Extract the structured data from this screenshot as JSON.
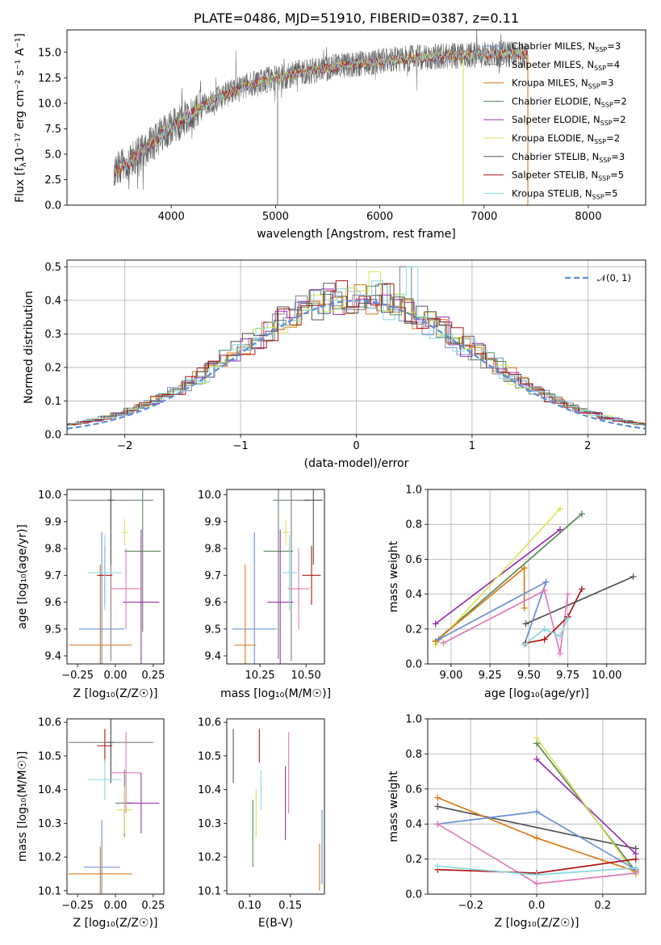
{
  "figure_title": "PLATE=0486, MJD=51910, FIBERID=0387, z=0.11",
  "colors": {
    "chabrier_miles": "#6b8fd6",
    "salpeter_miles": "#7f7f7f",
    "kroupa_miles": "#d97a1a",
    "chabrier_elodie": "#5a8a5a",
    "salpeter_elodie": "#9b30b0",
    "kroupa_elodie": "#d8e45a",
    "chabrier_stelib": "#555555",
    "salpeter_stelib": "#b01818",
    "kroupa_stelib": "#8ad8e0",
    "gaussian": "#5b8ddb",
    "pink": "#e07ab8",
    "grid": "#b0b0b0"
  },
  "chart_data": [
    {
      "id": "spectrum",
      "type": "line",
      "title": "PLATE=0486, MJD=51910, FIBERID=0387, z=0.11",
      "xlabel": "wavelength [Angstrom, rest frame]",
      "ylabel_main": "Flux [f",
      "ylabel_tail": "10⁻¹⁷ erg cm⁻² s⁻¹ A⁻¹]",
      "xlim": [
        3000,
        8550
      ],
      "ylim": [
        0,
        17.2
      ],
      "xticks": [
        "4000",
        "5000",
        "6000",
        "7000",
        "8000"
      ],
      "yticks": [
        "0.0",
        "2.5",
        "5.0",
        "7.5",
        "10.0",
        "12.5",
        "15.0"
      ],
      "grid": false,
      "legend_position": "right",
      "continuum": [
        [
          3450,
          3.3
        ],
        [
          3600,
          4.2
        ],
        [
          3750,
          5.5
        ],
        [
          3900,
          6.8
        ],
        [
          4000,
          7.6
        ],
        [
          4200,
          9.0
        ],
        [
          4400,
          10.3
        ],
        [
          4600,
          11.2
        ],
        [
          4800,
          12.0
        ],
        [
          5000,
          12.5
        ],
        [
          5200,
          12.9
        ],
        [
          5400,
          13.3
        ],
        [
          5600,
          13.6
        ],
        [
          5800,
          13.9
        ],
        [
          6000,
          14.1
        ],
        [
          6200,
          14.3
        ],
        [
          6400,
          14.5
        ],
        [
          6600,
          14.6
        ],
        [
          6800,
          14.7
        ],
        [
          7000,
          14.8
        ],
        [
          7200,
          14.8
        ],
        [
          7400,
          14.8
        ]
      ],
      "features": [
        [
          5020,
          0.0
        ],
        [
          6800,
          0.0
        ],
        [
          7420,
          0.0
        ]
      ],
      "series": [
        {
          "name_main": "Chabrier MILES, N",
          "name_tail": "=3",
          "color": "#6b8fd6"
        },
        {
          "name_main": "Salpeter MILES, N",
          "name_tail": "=4",
          "color": "#7f7f7f"
        },
        {
          "name_main": "Kroupa MILES, N",
          "name_tail": "=3",
          "color": "#d97a1a"
        },
        {
          "name_main": "Chabrier ELODIE, N",
          "name_tail": "=2",
          "color": "#5a8a5a"
        },
        {
          "name_main": "Salpeter ELODIE, N",
          "name_tail": "=2",
          "color": "#9b30b0"
        },
        {
          "name_main": "Kroupa ELODIE, N",
          "name_tail": "=2",
          "color": "#d8e45a"
        },
        {
          "name_main": "Chabrier STELIB, N",
          "name_tail": "=3",
          "color": "#555555"
        },
        {
          "name_main": "Salpeter STELIB, N",
          "name_tail": "=5",
          "color": "#b01818"
        },
        {
          "name_main": "Kroupa STELIB, N",
          "name_tail": "=5",
          "color": "#8ad8e0"
        }
      ]
    },
    {
      "id": "residuals",
      "type": "bar",
      "xlabel": "(data-model)/error",
      "ylabel": "Normed distribution",
      "xlim": [
        -2.5,
        2.5
      ],
      "ylim": [
        0,
        0.52
      ],
      "xticks": [
        "−2",
        "−1",
        "0",
        "1",
        "2"
      ],
      "yticks": [
        "0.0",
        "0.1",
        "0.2",
        "0.3",
        "0.4",
        "0.5"
      ],
      "grid": true,
      "legend": "𝒩(0, 1)",
      "legend_position": "top-right",
      "bin_width": 0.1
    },
    {
      "id": "age_vs_Z",
      "type": "scatter",
      "xlabel": "Z [log₁₀(Z/Z☉)]",
      "ylabel": "age  [log₁₀(age/yr)]",
      "xlim": [
        -0.32,
        0.32
      ],
      "ylim": [
        9.37,
        10.02
      ],
      "xticks": [
        "−0.25",
        "0.00",
        "0.25"
      ],
      "yticks": [
        "9.4",
        "9.5",
        "9.6",
        "9.7",
        "9.8",
        "9.9",
        "10.0"
      ],
      "points": [
        {
          "x": -0.09,
          "y": 9.5,
          "xerr": 0.15,
          "yerr": 0.36,
          "color": "#6b8fd6"
        },
        {
          "x": -0.03,
          "y": 9.98,
          "xerr": 0.28,
          "yerr": 0.6,
          "color": "#7f7f7f"
        },
        {
          "x": -0.1,
          "y": 9.44,
          "xerr": 0.21,
          "yerr": 0.3,
          "color": "#d97a1a"
        },
        {
          "x": 0.18,
          "y": 9.79,
          "xerr": 0.12,
          "yerr": 0.3,
          "color": "#5a8a5a"
        },
        {
          "x": 0.17,
          "y": 9.6,
          "xerr": 0.12,
          "yerr": 0.27,
          "color": "#9b30b0"
        },
        {
          "x": 0.06,
          "y": 9.86,
          "xerr": 0.02,
          "yerr": 0.05,
          "color": "#d8e45a"
        },
        {
          "x": -0.03,
          "y": 9.98,
          "xerr": 0.02,
          "yerr": 0.24,
          "color": "#555555"
        },
        {
          "x": -0.07,
          "y": 9.7,
          "xerr": 0.05,
          "yerr": 0.11,
          "color": "#b01818"
        },
        {
          "x": -0.07,
          "y": 9.71,
          "xerr": 0.11,
          "yerr": 0.14,
          "color": "#8ad8e0"
        },
        {
          "x": 0.07,
          "y": 9.65,
          "xerr": 0.1,
          "yerr": 0.15,
          "color": "#e07ab8"
        }
      ]
    },
    {
      "id": "age_vs_mass",
      "type": "scatter",
      "xlabel": "mass [log₁₀(M/M☉)]",
      "xlim": [
        10.07,
        10.6
      ],
      "ylim": [
        9.37,
        10.02
      ],
      "xticks": [
        "10.25",
        "10.50"
      ],
      "yticks": [
        "9.4",
        "9.5",
        "9.6",
        "9.7",
        "9.8",
        "9.9",
        "10.0"
      ],
      "points": [
        {
          "x": 10.22,
          "y": 9.5,
          "xerr": 0.12,
          "yerr": 0.36,
          "color": "#6b8fd6"
        },
        {
          "x": 10.42,
          "y": 9.98,
          "xerr": 0.1,
          "yerr": 0.6,
          "color": "#7f7f7f"
        },
        {
          "x": 10.17,
          "y": 9.44,
          "xerr": 0.06,
          "yerr": 0.3,
          "color": "#d97a1a"
        },
        {
          "x": 10.35,
          "y": 9.79,
          "xerr": 0.08,
          "yerr": 0.4,
          "color": "#5a8a5a"
        },
        {
          "x": 10.36,
          "y": 9.6,
          "xerr": 0.07,
          "yerr": 0.27,
          "color": "#9b30b0"
        },
        {
          "x": 10.39,
          "y": 9.86,
          "xerr": 0.02,
          "yerr": 0.05,
          "color": "#d8e45a"
        },
        {
          "x": 10.54,
          "y": 9.98,
          "xerr": 0.05,
          "yerr": 0.24,
          "color": "#555555"
        },
        {
          "x": 10.53,
          "y": 9.7,
          "xerr": 0.05,
          "yerr": 0.11,
          "color": "#b01818"
        },
        {
          "x": 10.41,
          "y": 9.71,
          "xerr": 0.04,
          "yerr": 0.14,
          "color": "#8ad8e0"
        },
        {
          "x": 10.46,
          "y": 9.65,
          "xerr": 0.06,
          "yerr": 0.15,
          "color": "#e07ab8"
        }
      ]
    },
    {
      "id": "weight_vs_age",
      "type": "line",
      "xlabel": "age  [log₁₀(age/yr)]",
      "ylabel": "mass weight",
      "xlim": [
        8.85,
        10.25
      ],
      "ylim": [
        0,
        1
      ],
      "xticks": [
        "9.00",
        "9.25",
        "9.50",
        "9.75",
        "10.00"
      ],
      "yticks": [
        "0.0",
        "0.2",
        "0.4",
        "0.6",
        "0.8",
        "1.0"
      ],
      "grid": true,
      "series": [
        {
          "color": "#555555",
          "points": [
            [
              9.48,
              0.23
            ],
            [
              10.17,
              0.5
            ]
          ]
        },
        {
          "color": "#5a8a5a",
          "points": [
            [
              8.9,
              0.13
            ],
            [
              9.84,
              0.86
            ]
          ]
        },
        {
          "color": "#9b30b0",
          "points": [
            [
              8.9,
              0.23
            ],
            [
              9.7,
              0.77
            ]
          ]
        },
        {
          "color": "#d8e45a",
          "points": [
            [
              8.9,
              0.11
            ],
            [
              9.7,
              0.89
            ]
          ]
        },
        {
          "color": "#d97a1a",
          "points": [
            [
              8.9,
              0.13
            ],
            [
              9.47,
              0.55
            ],
            [
              9.47,
              0.32
            ]
          ]
        },
        {
          "color": "#6b8fd6",
          "points": [
            [
              8.92,
              0.14
            ],
            [
              9.61,
              0.47
            ],
            [
              9.47,
              0.11
            ]
          ]
        },
        {
          "color": "#e07ab8",
          "points": [
            [
              8.95,
              0.12
            ],
            [
              9.6,
              0.42
            ],
            [
              9.7,
              0.06
            ],
            [
              9.75,
              0.4
            ]
          ]
        },
        {
          "color": "#b01818",
          "points": [
            [
              9.48,
              0.12
            ],
            [
              9.6,
              0.14
            ],
            [
              9.75,
              0.27
            ],
            [
              9.84,
              0.43
            ]
          ]
        },
        {
          "color": "#8ad8e0",
          "points": [
            [
              9.47,
              0.11
            ],
            [
              9.6,
              0.2
            ],
            [
              9.7,
              0.16
            ],
            [
              9.75,
              0.26
            ]
          ]
        }
      ]
    },
    {
      "id": "mass_vs_Z",
      "type": "scatter",
      "xlabel": "Z [log₁₀(Z/Z☉)]",
      "ylabel": "mass [log₁₀(M/M☉)]",
      "xlim": [
        -0.32,
        0.32
      ],
      "ylim": [
        10.09,
        10.61
      ],
      "xticks": [
        "−0.25",
        "0.00",
        "0.25"
      ],
      "yticks": [
        "10.1",
        "10.2",
        "10.3",
        "10.4",
        "10.5",
        "10.6"
      ],
      "points": [
        {
          "x": -0.09,
          "y": 10.17,
          "xerr": 0.12,
          "yerr": 0.14,
          "color": "#6b8fd6"
        },
        {
          "x": -0.03,
          "y": 10.54,
          "xerr": 0.28,
          "yerr": 0.12,
          "color": "#7f7f7f"
        },
        {
          "x": -0.1,
          "y": 10.15,
          "xerr": 0.21,
          "yerr": 0.08,
          "color": "#d97a1a"
        },
        {
          "x": 0.06,
          "y": 10.36,
          "xerr": 0.06,
          "yerr": 0.1,
          "color": "#5a8a5a"
        },
        {
          "x": 0.17,
          "y": 10.36,
          "xerr": 0.12,
          "yerr": 0.09,
          "color": "#9b30b0"
        },
        {
          "x": 0.06,
          "y": 10.34,
          "xerr": 0.05,
          "yerr": 0.07,
          "color": "#d8e45a"
        },
        {
          "x": -0.03,
          "y": 10.54,
          "xerr": 0.02,
          "yerr": 0.12,
          "color": "#555555"
        },
        {
          "x": -0.07,
          "y": 10.53,
          "xerr": 0.05,
          "yerr": 0.05,
          "color": "#b01818"
        },
        {
          "x": -0.07,
          "y": 10.43,
          "xerr": 0.11,
          "yerr": 0.06,
          "color": "#8ad8e0"
        },
        {
          "x": 0.07,
          "y": 10.45,
          "xerr": 0.1,
          "yerr": 0.12,
          "color": "#e07ab8"
        }
      ]
    },
    {
      "id": "mass_vs_ebv",
      "type": "scatter",
      "xlabel": "E(B-V)",
      "xlim": [
        0.072,
        0.192
      ],
      "ylim": [
        10.09,
        10.61
      ],
      "xticks": [
        "0.10",
        "0.15"
      ],
      "yticks": [
        "10.1",
        "10.2",
        "10.3",
        "10.4",
        "10.5",
        "10.6"
      ],
      "points": [
        {
          "x": 0.08,
          "y": 10.5,
          "yerr": 0.08,
          "color": "#555555"
        },
        {
          "x": 0.104,
          "y": 10.27,
          "yerr": 0.1,
          "color": "#5a8a5a"
        },
        {
          "x": 0.108,
          "y": 10.33,
          "yerr": 0.07,
          "color": "#d8e45a"
        },
        {
          "x": 0.112,
          "y": 10.53,
          "yerr": 0.05,
          "color": "#b01818"
        },
        {
          "x": 0.114,
          "y": 10.4,
          "yerr": 0.06,
          "color": "#8ad8e0"
        },
        {
          "x": 0.144,
          "y": 10.36,
          "yerr": 0.11,
          "color": "#9b30b0"
        },
        {
          "x": 0.148,
          "y": 10.45,
          "yerr": 0.12,
          "color": "#e07ab8"
        },
        {
          "x": 0.186,
          "y": 10.17,
          "yerr": 0.07,
          "color": "#d97a1a"
        },
        {
          "x": 0.189,
          "y": 10.23,
          "yerr": 0.11,
          "color": "#6b8fd6"
        }
      ]
    },
    {
      "id": "weight_vs_Z",
      "type": "line",
      "xlabel": "Z [log₁₀(Z/Z☉)]",
      "ylabel": "mass weight",
      "xlim": [
        -0.33,
        0.33
      ],
      "ylim": [
        0,
        1
      ],
      "xticks": [
        "−0.2",
        "0.0",
        "0.2"
      ],
      "yticks": [
        "0.0",
        "0.2",
        "0.4",
        "0.6",
        "0.8",
        "1.0"
      ],
      "grid": true,
      "series": [
        {
          "color": "#555555",
          "points": [
            [
              -0.3,
              0.5
            ],
            [
              0.3,
              0.26
            ]
          ]
        },
        {
          "color": "#5a8a5a",
          "points": [
            [
              0.0,
              0.86
            ],
            [
              0.3,
              0.13
            ]
          ]
        },
        {
          "color": "#9b30b0",
          "points": [
            [
              0.0,
              0.77
            ],
            [
              0.3,
              0.23
            ]
          ]
        },
        {
          "color": "#d8e45a",
          "points": [
            [
              0.0,
              0.89
            ],
            [
              0.3,
              0.11
            ]
          ]
        },
        {
          "color": "#d97a1a",
          "points": [
            [
              -0.3,
              0.55
            ],
            [
              0.0,
              0.32
            ],
            [
              0.3,
              0.13
            ]
          ]
        },
        {
          "color": "#6b8fd6",
          "points": [
            [
              -0.3,
              0.4
            ],
            [
              0.0,
              0.47
            ],
            [
              0.3,
              0.14
            ]
          ]
        },
        {
          "color": "#e07ab8",
          "points": [
            [
              -0.3,
              0.4
            ],
            [
              0.0,
              0.06
            ],
            [
              0.3,
              0.12
            ]
          ]
        },
        {
          "color": "#b01818",
          "points": [
            [
              -0.3,
              0.14
            ],
            [
              0.0,
              0.12
            ],
            [
              0.3,
              0.2
            ]
          ]
        },
        {
          "color": "#8ad8e0",
          "points": [
            [
              -0.3,
              0.16
            ],
            [
              0.0,
              0.11
            ],
            [
              0.3,
              0.15
            ]
          ]
        }
      ]
    }
  ]
}
